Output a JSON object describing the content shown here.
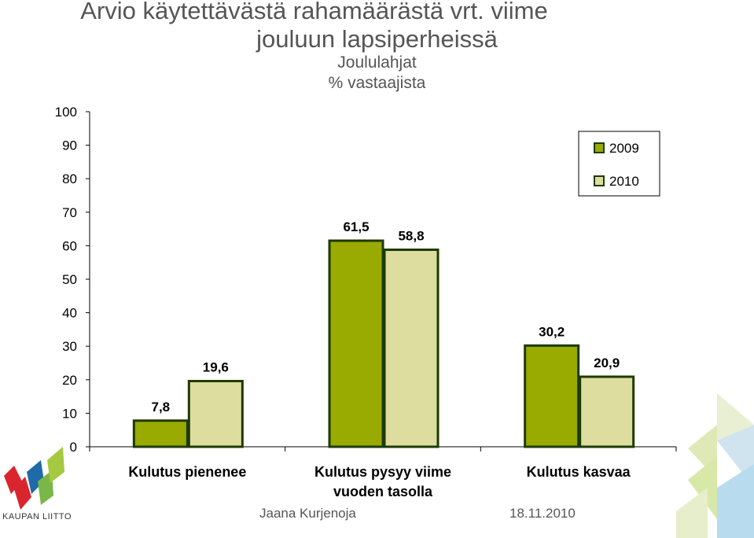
{
  "title": {
    "line1": "Arvio käytettävästä rahamäärästä vrt. viime",
    "line2": "jouluun lapsiperheissä",
    "subtitle": "Joululahjat",
    "unit": "% vastaajista"
  },
  "footer": {
    "author": "Jaana Kurjenoja",
    "date": "18.11.2010",
    "logo_text": "KAUPAN LIITTO"
  },
  "colors": {
    "series_2009": "#99aa00",
    "series_2010": "#dddda0",
    "bar_border": "#1e3a00"
  },
  "chart_data": {
    "type": "bar",
    "categories": [
      "Kulutus pienenee",
      "Kulutus pysyy viime vuoden tasolla",
      "Kulutus kasvaa"
    ],
    "series": [
      {
        "name": "2009",
        "values": [
          7.8,
          61.5,
          30.2
        ],
        "labels": [
          "7,8",
          "61,5",
          "30,2"
        ]
      },
      {
        "name": "2010",
        "values": [
          19.6,
          58.8,
          20.9
        ],
        "labels": [
          "19,6",
          "58,8",
          "20,9"
        ]
      }
    ],
    "ylim": [
      0,
      100
    ],
    "yticks": [
      0,
      10,
      20,
      30,
      40,
      50,
      60,
      70,
      80,
      90,
      100
    ],
    "legend": "top-right",
    "grid": false
  }
}
